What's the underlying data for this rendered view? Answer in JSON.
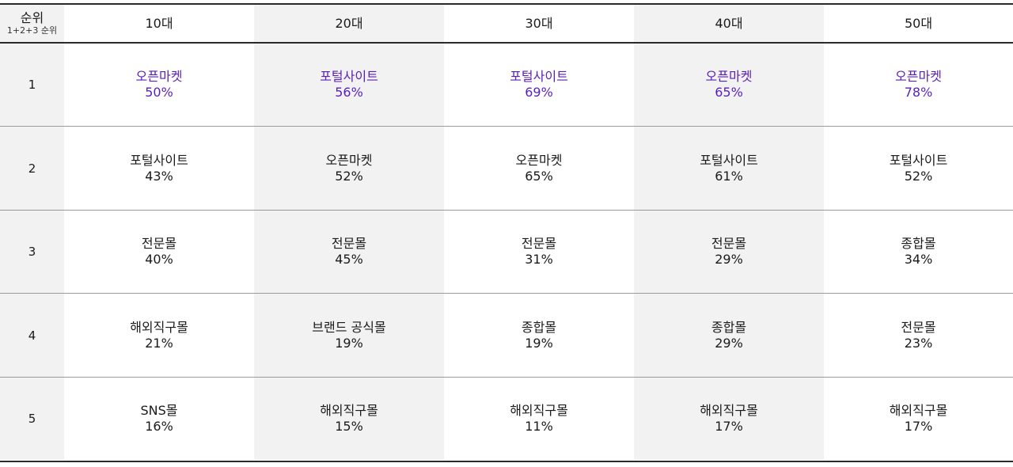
{
  "header": {
    "rank_title": "순위",
    "rank_sub": "1+2+3 순위",
    "ages": [
      "10대",
      "20대",
      "30대",
      "40대",
      "50대"
    ]
  },
  "highlight_color": "#5a1fb8",
  "rows": [
    {
      "rank": "1",
      "cells": [
        {
          "name": "오픈마켓",
          "pct": "50%"
        },
        {
          "name": "포털사이트",
          "pct": "56%"
        },
        {
          "name": "포털사이트",
          "pct": "69%"
        },
        {
          "name": "오픈마켓",
          "pct": "65%"
        },
        {
          "name": "오픈마켓",
          "pct": "78%"
        }
      ]
    },
    {
      "rank": "2",
      "cells": [
        {
          "name": "포털사이트",
          "pct": "43%"
        },
        {
          "name": "오픈마켓",
          "pct": "52%"
        },
        {
          "name": "오픈마켓",
          "pct": "65%"
        },
        {
          "name": "포털사이트",
          "pct": "61%"
        },
        {
          "name": "포털사이트",
          "pct": "52%"
        }
      ]
    },
    {
      "rank": "3",
      "cells": [
        {
          "name": "전문몰",
          "pct": "40%"
        },
        {
          "name": "전문몰",
          "pct": "45%"
        },
        {
          "name": "전문몰",
          "pct": "31%"
        },
        {
          "name": "전문몰",
          "pct": "29%"
        },
        {
          "name": "종합몰",
          "pct": "34%"
        }
      ]
    },
    {
      "rank": "4",
      "cells": [
        {
          "name": "해외직구몰",
          "pct": "21%"
        },
        {
          "name": "브랜드 공식몰",
          "pct": "19%"
        },
        {
          "name": "종합몰",
          "pct": "19%"
        },
        {
          "name": "종합몰",
          "pct": "29%"
        },
        {
          "name": "전문몰",
          "pct": "23%"
        }
      ]
    },
    {
      "rank": "5",
      "cells": [
        {
          "name": "SNS몰",
          "pct": "16%"
        },
        {
          "name": "해외직구몰",
          "pct": "15%"
        },
        {
          "name": "해외직구몰",
          "pct": "11%"
        },
        {
          "name": "해외직구몰",
          "pct": "17%"
        },
        {
          "name": "해외직구몰",
          "pct": "17%"
        }
      ]
    }
  ]
}
